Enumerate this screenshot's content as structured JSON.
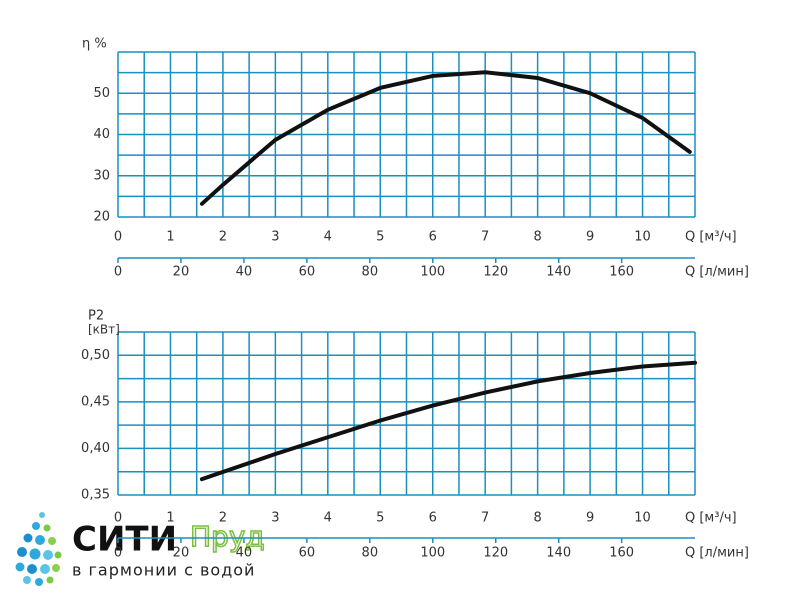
{
  "chart_data": [
    {
      "type": "line",
      "ylabel": "η %",
      "xlabel": "Q [м³/ч]",
      "x2label": "Q [л/мин]",
      "xlim": [
        0,
        11
      ],
      "xticks": [
        0,
        1,
        2,
        3,
        4,
        5,
        6,
        7,
        8,
        9,
        10
      ],
      "xminorticks": [
        0,
        0.5,
        1,
        1.5,
        2,
        2.5,
        3,
        3.5,
        4,
        4.5,
        5,
        5.5,
        6,
        6.5,
        7,
        7.5,
        8,
        8.5,
        9,
        9.5,
        10,
        10.5,
        11
      ],
      "x2lim": [
        0,
        183.3
      ],
      "x2ticks": [
        0,
        20,
        40,
        60,
        80,
        100,
        120,
        140,
        160
      ],
      "ylim": [
        20,
        60
      ],
      "yticks": [
        20,
        30,
        40,
        50
      ],
      "yminorticks": [
        20,
        25,
        30,
        35,
        40,
        45,
        50,
        55,
        60
      ],
      "grid": true,
      "grid_color": "#1a8fc0",
      "x": [
        1.6,
        2,
        3,
        4,
        5,
        6,
        7,
        8,
        9,
        10,
        10.9
      ],
      "series": [
        {
          "color": "#111111",
          "values": [
            23.2,
            27.8,
            38.7,
            46,
            51.3,
            54.2,
            55.1,
            53.7,
            50,
            44,
            35.8
          ]
        }
      ]
    },
    {
      "type": "line",
      "ylabel": "P2",
      "yunit": "[кВт]",
      "xlabel": "Q [м³/ч]",
      "x2label": "Q [л/мин]",
      "xlim": [
        0,
        11
      ],
      "xticks": [
        0,
        1,
        2,
        3,
        4,
        5,
        6,
        7,
        8,
        9,
        10
      ],
      "xminorticks": [
        0,
        0.5,
        1,
        1.5,
        2,
        2.5,
        3,
        3.5,
        4,
        4.5,
        5,
        5.5,
        6,
        6.5,
        7,
        7.5,
        8,
        8.5,
        9,
        9.5,
        10,
        10.5,
        11
      ],
      "x2lim": [
        0,
        183.3
      ],
      "x2ticks": [
        0,
        20,
        40,
        60,
        80,
        100,
        120,
        140,
        160
      ],
      "ylim": [
        0.35,
        0.525
      ],
      "yticks": [
        {
          "value": 0.35,
          "label": "0,35"
        },
        {
          "value": 0.4,
          "label": "0,40"
        },
        {
          "value": 0.45,
          "label": "0,45"
        },
        {
          "value": 0.5,
          "label": "0,50"
        }
      ],
      "yminorticks": [
        0.35,
        0.375,
        0.4,
        0.425,
        0.45,
        0.475,
        0.5,
        0.525
      ],
      "grid": true,
      "grid_color": "#1a8fc0",
      "x": [
        1.6,
        3,
        4,
        5,
        6,
        7,
        8,
        9,
        10,
        11
      ],
      "series": [
        {
          "color": "#111111",
          "values": [
            0.367,
            0.394,
            0.412,
            0.43,
            0.446,
            0.46,
            0.472,
            0.481,
            0.488,
            0.492
          ]
        }
      ]
    }
  ],
  "logo": {
    "name_dark": "СИТИ",
    "name_green": "Пруд",
    "slogan": "в гармонии с водой"
  }
}
